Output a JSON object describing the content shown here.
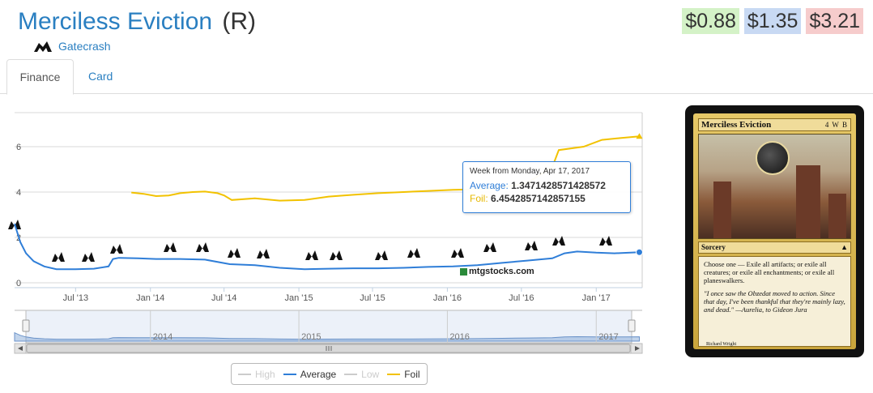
{
  "card": {
    "name": "Merciless Eviction",
    "rarity": "(R)",
    "set_name": "Gatecrash",
    "set_icon": "gatecrash-set-icon"
  },
  "prices": {
    "low": "$0.88",
    "average": "$1.35",
    "foil": "$3.21",
    "colors": {
      "low": "#d4f2c7",
      "average": "#c8d9f3",
      "foil": "#f6cccc"
    }
  },
  "tabs": [
    {
      "label": "Finance",
      "active": true
    },
    {
      "label": "Card",
      "active": false
    }
  ],
  "tooltip": {
    "header": "Week from Monday, Apr 17, 2017",
    "average_label": "Average:",
    "average_value": "1.3471428571428572",
    "foil_label": "Foil:",
    "foil_value": "6.4542857142857155"
  },
  "legend": [
    {
      "label": "High",
      "color": "#cccccc",
      "enabled": false
    },
    {
      "label": "Average",
      "color": "#2f7ed8",
      "enabled": true
    },
    {
      "label": "Low",
      "color": "#cccccc",
      "enabled": false
    },
    {
      "label": "Foil",
      "color": "#f2c200",
      "enabled": true
    }
  ],
  "watermark": "mtgstocks.com",
  "navigator_years": [
    "2014",
    "2015",
    "2016",
    "2017"
  ],
  "set_release_icons": [
    "gtc",
    "dgm",
    "m14",
    "ths",
    "bng",
    "jou",
    "m15",
    "ktk",
    "frf",
    "dtk",
    "ori",
    "bfz",
    "ogw",
    "soi",
    "emn",
    "kld",
    "aer"
  ],
  "chart_data": {
    "type": "line",
    "x_tick_labels": [
      "Jul '13",
      "Jan '14",
      "Jul '14",
      "Jan '15",
      "Jul '15",
      "Jan '16",
      "Jul '16",
      "Jan '17"
    ],
    "y_tick_labels": [
      "0",
      "2",
      "4",
      "6"
    ],
    "ylim": [
      0,
      7.5
    ],
    "xlim": [
      "2013-02-01",
      "2017-04-24"
    ],
    "grid": true,
    "legend_position": "bottom",
    "series": [
      {
        "name": "Average",
        "color": "#2f7ed8",
        "points": [
          [
            "2013-02-01",
            2.6
          ],
          [
            "2013-02-15",
            1.8
          ],
          [
            "2013-03-01",
            1.3
          ],
          [
            "2013-03-20",
            0.95
          ],
          [
            "2013-04-15",
            0.72
          ],
          [
            "2013-05-15",
            0.6
          ],
          [
            "2013-07-01",
            0.6
          ],
          [
            "2013-08-15",
            0.62
          ],
          [
            "2013-09-20",
            0.72
          ],
          [
            "2013-10-01",
            1.05
          ],
          [
            "2013-10-15",
            1.1
          ],
          [
            "2013-12-01",
            1.08
          ],
          [
            "2014-01-15",
            1.05
          ],
          [
            "2014-03-15",
            1.05
          ],
          [
            "2014-05-15",
            1.02
          ],
          [
            "2014-07-15",
            0.82
          ],
          [
            "2014-09-15",
            0.78
          ],
          [
            "2014-11-15",
            0.66
          ],
          [
            "2015-01-15",
            0.6
          ],
          [
            "2015-03-15",
            0.62
          ],
          [
            "2015-05-15",
            0.64
          ],
          [
            "2015-07-15",
            0.64
          ],
          [
            "2015-09-15",
            0.66
          ],
          [
            "2015-11-15",
            0.7
          ],
          [
            "2016-01-15",
            0.72
          ],
          [
            "2016-03-15",
            0.78
          ],
          [
            "2016-05-15",
            0.88
          ],
          [
            "2016-07-15",
            0.98
          ],
          [
            "2016-09-15",
            1.08
          ],
          [
            "2016-10-15",
            1.3
          ],
          [
            "2016-11-15",
            1.38
          ],
          [
            "2017-01-01",
            1.33
          ],
          [
            "2017-02-15",
            1.3
          ],
          [
            "2017-03-15",
            1.32
          ],
          [
            "2017-04-17",
            1.347
          ]
        ]
      },
      {
        "name": "Foil",
        "color": "#f2c200",
        "points": [
          [
            "2013-11-15",
            3.98
          ],
          [
            "2013-12-15",
            3.92
          ],
          [
            "2014-01-15",
            3.82
          ],
          [
            "2014-02-15",
            3.85
          ],
          [
            "2014-03-15",
            3.95
          ],
          [
            "2014-04-15",
            4.0
          ],
          [
            "2014-05-15",
            4.02
          ],
          [
            "2014-06-15",
            3.95
          ],
          [
            "2014-07-01",
            3.85
          ],
          [
            "2014-07-20",
            3.65
          ],
          [
            "2014-09-15",
            3.72
          ],
          [
            "2014-11-15",
            3.62
          ],
          [
            "2015-01-15",
            3.65
          ],
          [
            "2015-03-15",
            3.8
          ],
          [
            "2015-05-15",
            3.88
          ],
          [
            "2015-07-15",
            3.95
          ],
          [
            "2015-09-15",
            4.0
          ],
          [
            "2015-11-15",
            4.05
          ],
          [
            "2016-01-15",
            4.1
          ],
          [
            "2016-03-15",
            4.12
          ],
          [
            "2016-05-15",
            4.2
          ],
          [
            "2016-07-15",
            4.4
          ],
          [
            "2016-09-15",
            5.1
          ],
          [
            "2016-10-01",
            5.85
          ],
          [
            "2016-12-01",
            6.0
          ],
          [
            "2017-01-15",
            6.3
          ],
          [
            "2017-03-01",
            6.38
          ],
          [
            "2017-04-17",
            6.454
          ]
        ]
      }
    ]
  },
  "card_image": {
    "name": "Merciless Eviction",
    "mana_cost": "4 W B",
    "type_line": "Sorcery",
    "rules_text": "Choose one — Exile all artifacts; or exile all creatures; or exile all enchantments; or exile all planeswalkers.",
    "flavor_text": "\"I once saw the Obzedat moved to action. Since that day, I've been thankful that they're mainly lazy, and dead.\" —Aurelia, to Gideon Jura",
    "artist": "Richard Wright"
  }
}
